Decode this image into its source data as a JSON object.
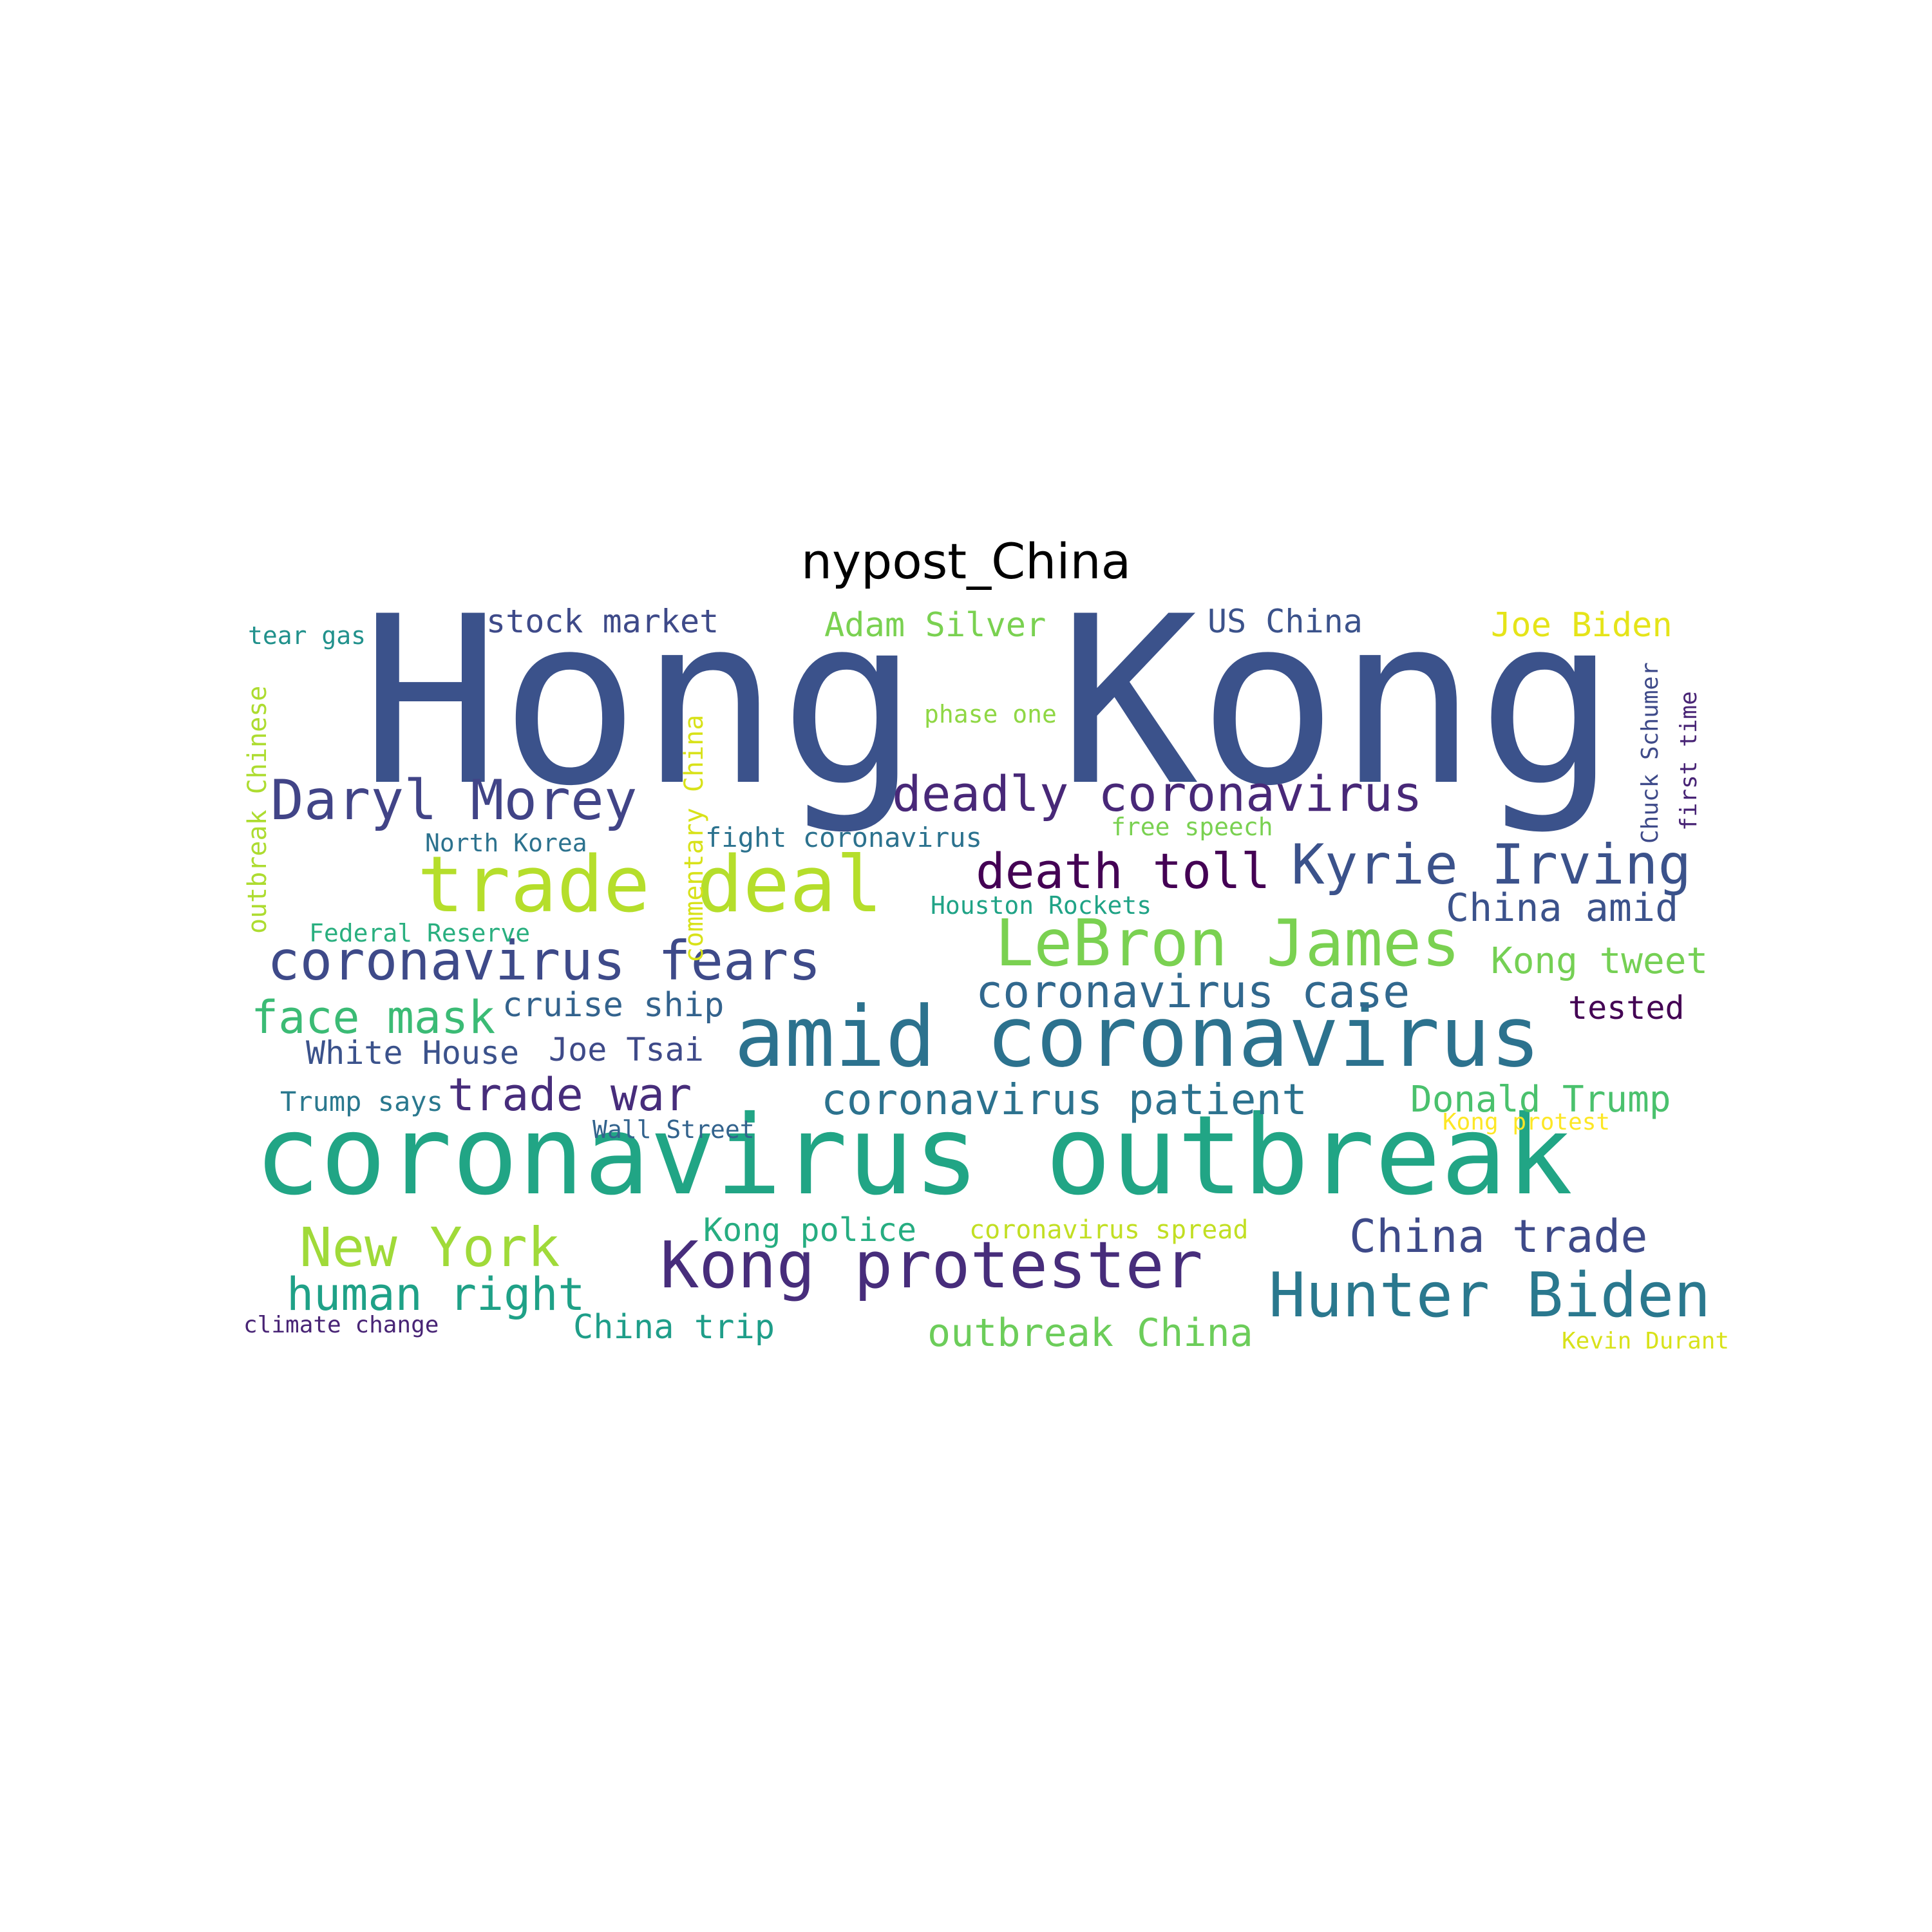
{
  "title": "nypost_China",
  "words": [
    {
      "text": "Hong Kong",
      "color": "#3b528b"
    },
    {
      "text": "coronavirus outbreak",
      "color": "#21a585"
    },
    {
      "text": "amid coronavirus",
      "color": "#2c728e"
    },
    {
      "text": "Kong protester",
      "color": "#472d7b"
    },
    {
      "text": "trade deal",
      "color": "#b5de2b"
    },
    {
      "text": "LeBron James",
      "color": "#7ad151"
    },
    {
      "text": "Hunter Biden",
      "color": "#2a788e"
    },
    {
      "text": "coronavirus fears",
      "color": "#3e4a89"
    },
    {
      "text": "Daryl Morey",
      "color": "#414487"
    },
    {
      "text": "Kyrie Irving",
      "color": "#3b528b"
    },
    {
      "text": "deadly coronavirus",
      "color": "#482878"
    },
    {
      "text": "New York",
      "color": "#a0da39"
    },
    {
      "text": "death toll",
      "color": "#440154"
    },
    {
      "text": "China trade",
      "color": "#3e4a89"
    },
    {
      "text": "coronavirus case",
      "color": "#31688e"
    },
    {
      "text": "coronavirus patient",
      "color": "#2c728e"
    },
    {
      "text": "human right",
      "color": "#1fa187"
    },
    {
      "text": "face mask",
      "color": "#3bbb75"
    },
    {
      "text": "trade war",
      "color": "#472d7b"
    },
    {
      "text": "outbreak China",
      "color": "#6ccd5a"
    },
    {
      "text": "Kong tweet",
      "color": "#75d054"
    },
    {
      "text": "China amid",
      "color": "#3b528b"
    },
    {
      "text": "Donald Trump",
      "color": "#4ac16d"
    },
    {
      "text": "Kong police",
      "color": "#26ad81"
    },
    {
      "text": "China trip",
      "color": "#1f9e89"
    },
    {
      "text": "cruise ship",
      "color": "#33638d"
    },
    {
      "text": "Joe Tsai",
      "color": "#3e4a89"
    },
    {
      "text": "White House",
      "color": "#3b528b"
    },
    {
      "text": "stock market",
      "color": "#3e4a89"
    },
    {
      "text": "Adam Silver",
      "color": "#7ad151"
    },
    {
      "text": "US China",
      "color": "#3b528b"
    },
    {
      "text": "Joe Biden",
      "color": "#e5e419"
    },
    {
      "text": "tested",
      "color": "#440154"
    },
    {
      "text": "fight coronavirus",
      "color": "#2c728e"
    },
    {
      "text": "Trump says",
      "color": "#2a788e"
    },
    {
      "text": "coronavirus spread",
      "color": "#c2df23"
    },
    {
      "text": "outbreak Chinese",
      "color": "#addc30"
    },
    {
      "text": "commentary China",
      "color": "#d8e219"
    },
    {
      "text": "Chuck Schumer",
      "color": "#3e4a89"
    },
    {
      "text": "first time",
      "color": "#482475"
    },
    {
      "text": "Wall Street",
      "color": "#33638d"
    },
    {
      "text": "Kong protest",
      "color": "#fde725"
    },
    {
      "text": "North Korea",
      "color": "#2c728e"
    },
    {
      "text": "Federal Reserve",
      "color": "#29af7f"
    },
    {
      "text": "Houston Rockets",
      "color": "#20a386"
    },
    {
      "text": "free speech",
      "color": "#7ad151"
    },
    {
      "text": "phase one",
      "color": "#8fd744"
    },
    {
      "text": "tear gas",
      "color": "#21918c"
    },
    {
      "text": "climate change",
      "color": "#482475"
    },
    {
      "text": "Kevin Durant",
      "color": "#d8e219"
    }
  ]
}
